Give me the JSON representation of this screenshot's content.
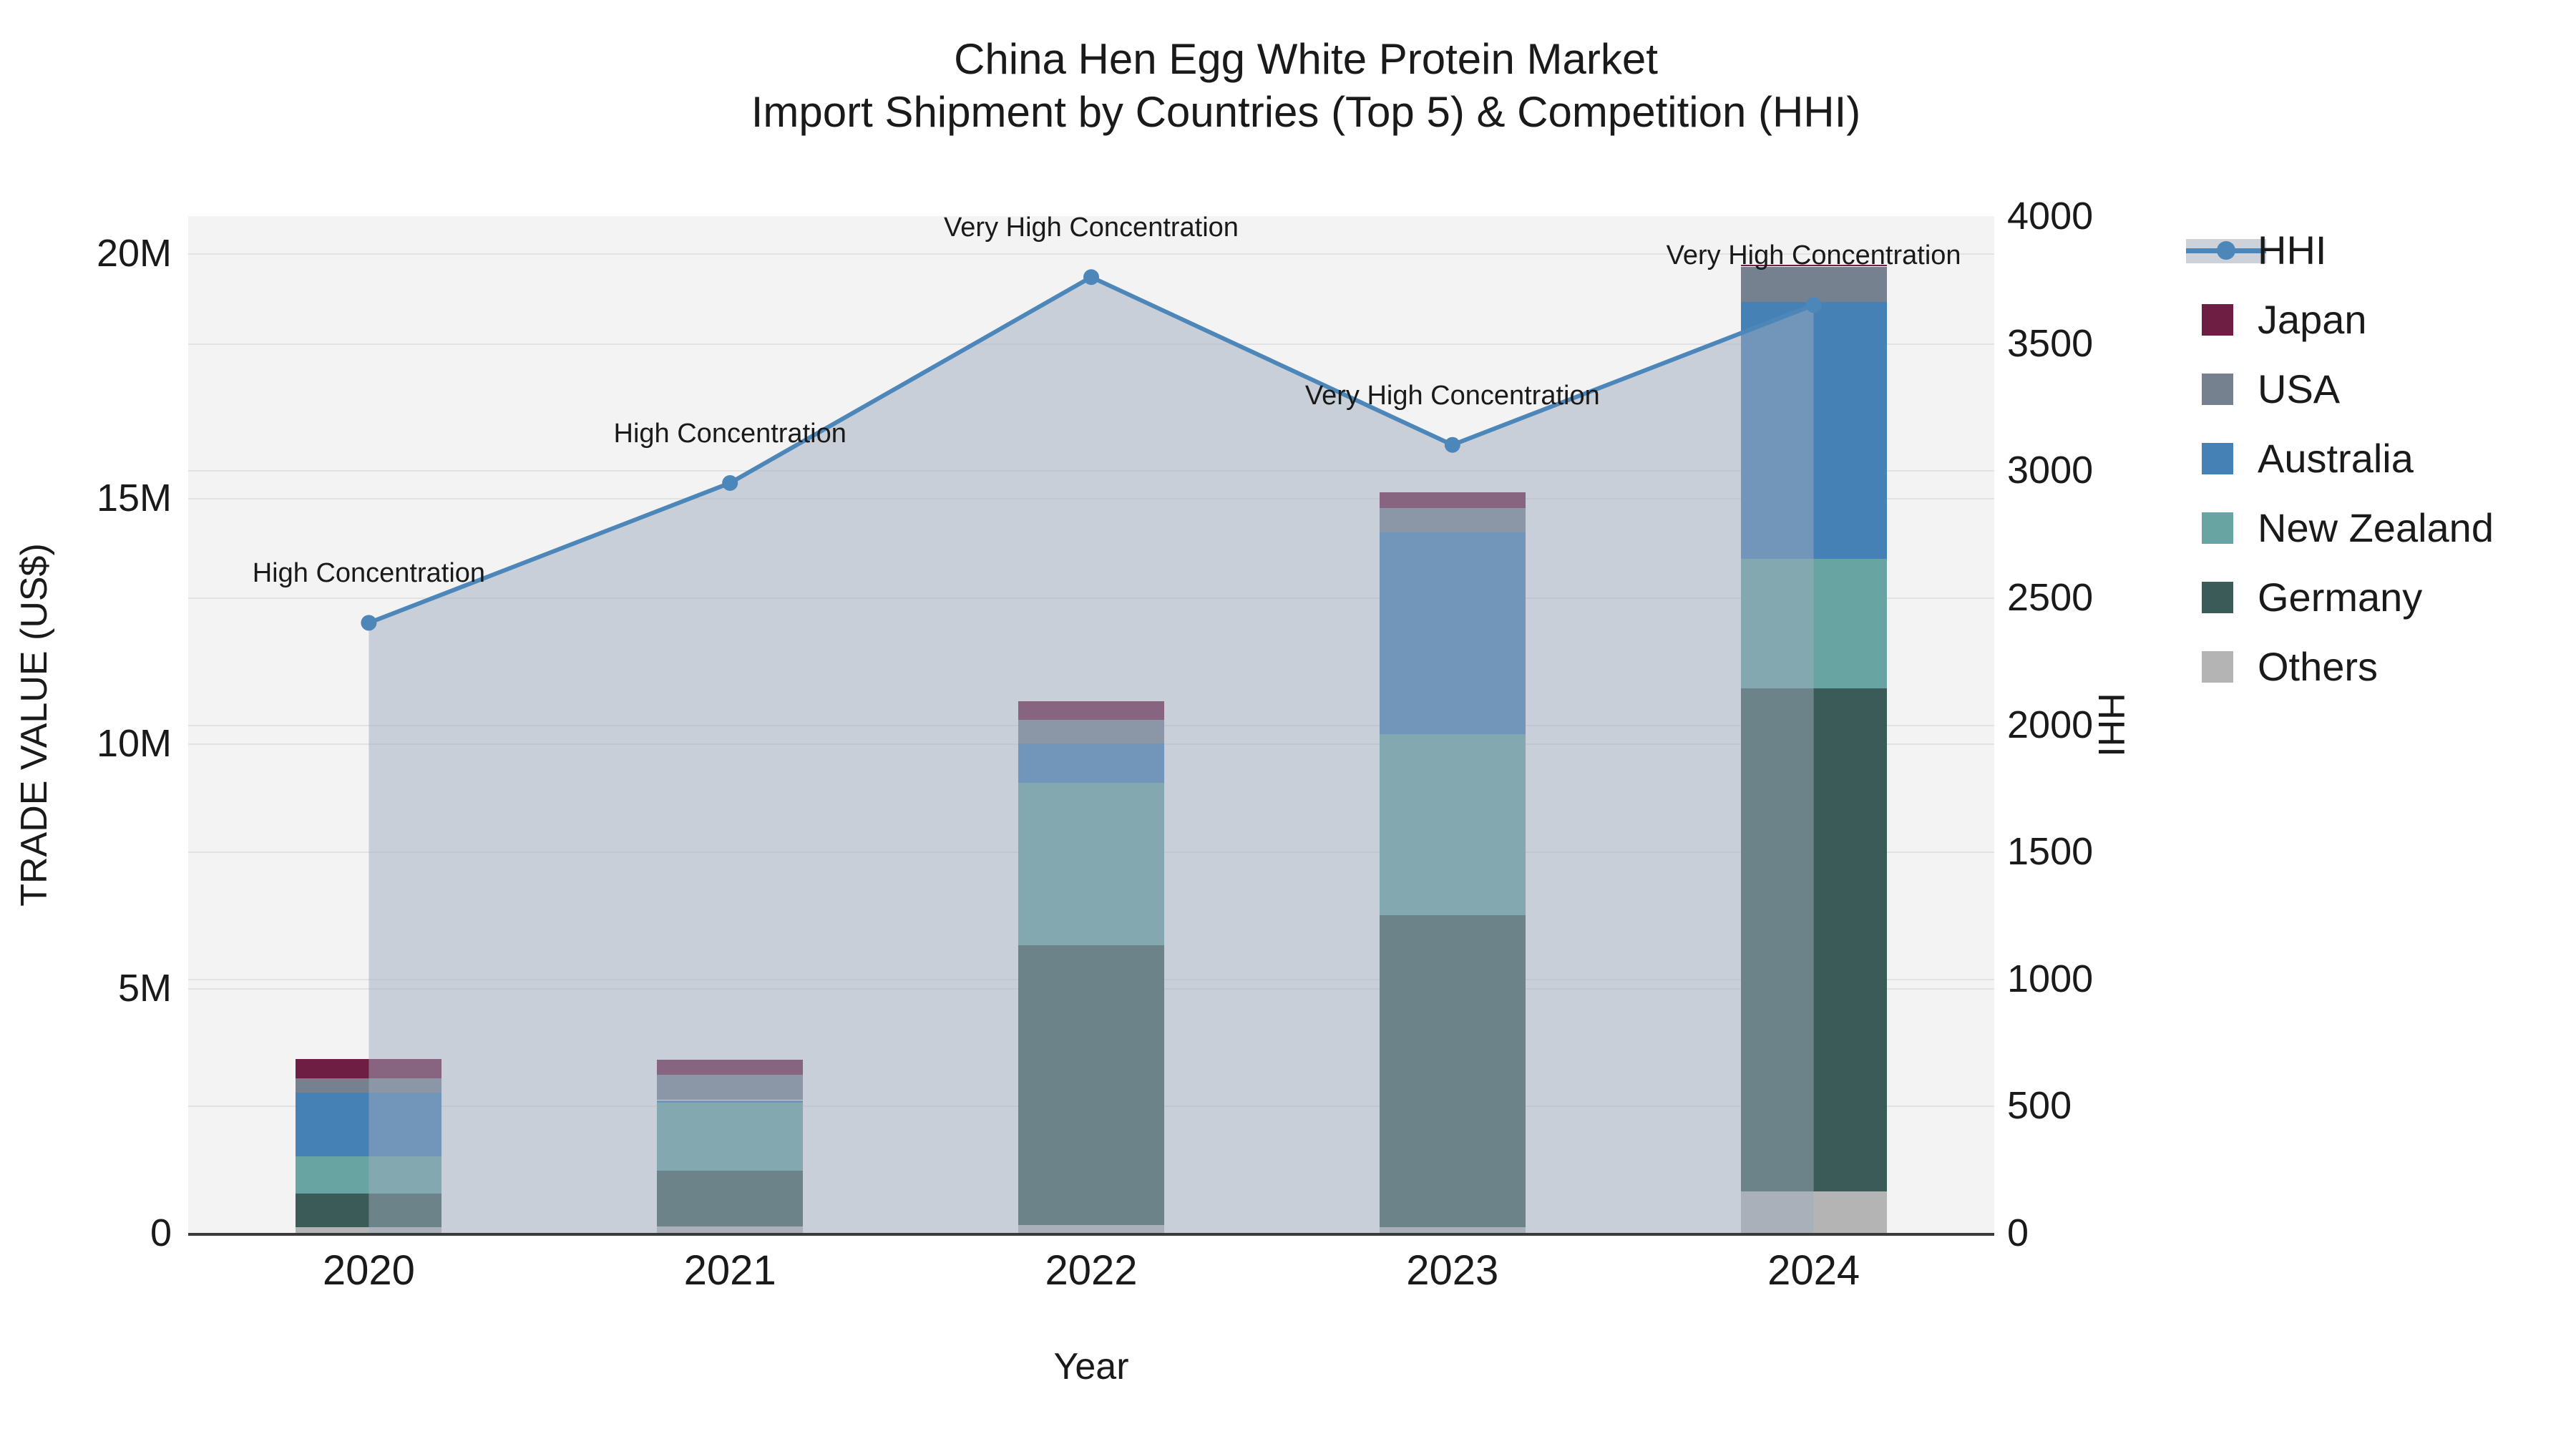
{
  "title": {
    "line1": "China Hen Egg White Protein Market",
    "line2": "Import Shipment by Countries (Top 5) & Competition (HHI)"
  },
  "axes": {
    "x_label": "Year",
    "y_left_label": "TRADE VALUE (US$)",
    "y_right_label": "HHI",
    "y_left_ticks": [
      {
        "value": 0,
        "label": "0"
      },
      {
        "value": 5,
        "label": "5M"
      },
      {
        "value": 10,
        "label": "10M"
      },
      {
        "value": 15,
        "label": "15M"
      },
      {
        "value": 20,
        "label": "20M"
      }
    ],
    "y_right_ticks": [
      0,
      500,
      1000,
      1500,
      2000,
      2500,
      3000,
      3500,
      4000
    ],
    "y_left_max_millions": 20.76,
    "y_right_max": 4000
  },
  "chart_data": {
    "type": "bar+line",
    "title": "China Hen Egg White Protein Market — Import Shipment by Countries (Top 5) & Competition (HHI)",
    "categories": [
      "2020",
      "2021",
      "2022",
      "2023",
      "2024"
    ],
    "bar_unit": "million US$",
    "stack_order": "bottom to top",
    "series": [
      {
        "name": "Others",
        "color": "#b4b4b4",
        "values": [
          0.11,
          0.13,
          0.16,
          0.11,
          0.85
        ]
      },
      {
        "name": "Germany",
        "color": "#3a5b57",
        "values": [
          0.69,
          1.14,
          5.72,
          6.37,
          10.27
        ]
      },
      {
        "name": "New Zealand",
        "color": "#68a4a1",
        "values": [
          0.76,
          1.39,
          3.31,
          3.7,
          2.64
        ]
      },
      {
        "name": "Australia",
        "color": "#4581b5",
        "values": [
          1.31,
          0.05,
          0.8,
          4.12,
          5.24
        ]
      },
      {
        "name": "USA",
        "color": "#76818f",
        "values": [
          0.28,
          0.52,
          0.49,
          0.5,
          0.73
        ]
      },
      {
        "name": "Japan",
        "color": "#6e1e43",
        "values": [
          0.4,
          0.31,
          0.38,
          0.32,
          0.04
        ]
      }
    ],
    "bar_totals_millions": [
      3.55,
      3.54,
      10.86,
      15.12,
      19.77
    ],
    "line": {
      "name": "HHI",
      "color": "#4d87ba",
      "area_color": "rgba(160,172,190,0.5)",
      "values": [
        2400,
        2950,
        3760,
        3100,
        3650
      ],
      "annotations": [
        "High Concentration",
        "High Concentration",
        "Very High Concentration",
        "Very High Concentration",
        "Very High Concentration"
      ]
    },
    "grid": "on",
    "legend_position": "right"
  },
  "legend": {
    "items": [
      {
        "label": "HHI",
        "type": "line",
        "color": "#4d87ba"
      },
      {
        "label": "Japan",
        "type": "swatch",
        "color": "#6e1e43"
      },
      {
        "label": "USA",
        "type": "swatch",
        "color": "#76818f"
      },
      {
        "label": "Australia",
        "type": "swatch",
        "color": "#4581b5"
      },
      {
        "label": "New Zealand",
        "type": "swatch",
        "color": "#68a4a1"
      },
      {
        "label": "Germany",
        "type": "swatch",
        "color": "#3a5b57"
      },
      {
        "label": "Others",
        "type": "swatch",
        "color": "#b4b4b4"
      }
    ]
  }
}
